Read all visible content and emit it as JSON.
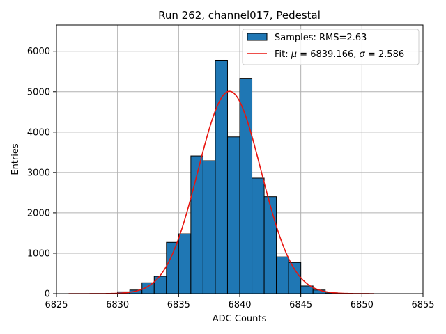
{
  "chart_data": {
    "type": "bar",
    "title": "Run 262, channel017, Pedestal",
    "xlabel": "ADC Counts",
    "ylabel": "Entries",
    "xlim": [
      6825,
      6855
    ],
    "ylim": [
      0,
      6650
    ],
    "x_ticks": [
      6825,
      6830,
      6835,
      6840,
      6845,
      6850,
      6855
    ],
    "y_ticks": [
      0,
      1000,
      2000,
      3000,
      4000,
      5000,
      6000
    ],
    "grid": true,
    "legend_position": "top-right",
    "bin_width": 1,
    "bins": [
      {
        "x": 6830,
        "value": 45
      },
      {
        "x": 6831,
        "value": 90
      },
      {
        "x": 6832,
        "value": 270
      },
      {
        "x": 6833,
        "value": 430
      },
      {
        "x": 6834,
        "value": 1270
      },
      {
        "x": 6835,
        "value": 1480
      },
      {
        "x": 6836,
        "value": 3410
      },
      {
        "x": 6837,
        "value": 3290
      },
      {
        "x": 6838,
        "value": 5780
      },
      {
        "x": 6839,
        "value": 3880
      },
      {
        "x": 6840,
        "value": 5330
      },
      {
        "x": 6841,
        "value": 2860
      },
      {
        "x": 6842,
        "value": 2400
      },
      {
        "x": 6843,
        "value": 910
      },
      {
        "x": 6844,
        "value": 770
      },
      {
        "x": 6845,
        "value": 190
      },
      {
        "x": 6846,
        "value": 90
      },
      {
        "x": 6847,
        "value": 20
      }
    ],
    "fit": {
      "mu": 6839.166,
      "sigma": 2.586,
      "amplitude": 5010,
      "x_range": [
        6826,
        6851
      ]
    },
    "series": [
      {
        "name": "Samples: RMS=2.63",
        "color": "#1f77b4",
        "kind": "histogram"
      },
      {
        "name_prefix": "Fit: ",
        "name_mu_symbol": "μ",
        "name_mu_text": " = 6839.166, ",
        "name_sigma_symbol": "σ",
        "name_sigma_text": " = 2.586",
        "color": "#e8150f",
        "kind": "line"
      }
    ]
  }
}
